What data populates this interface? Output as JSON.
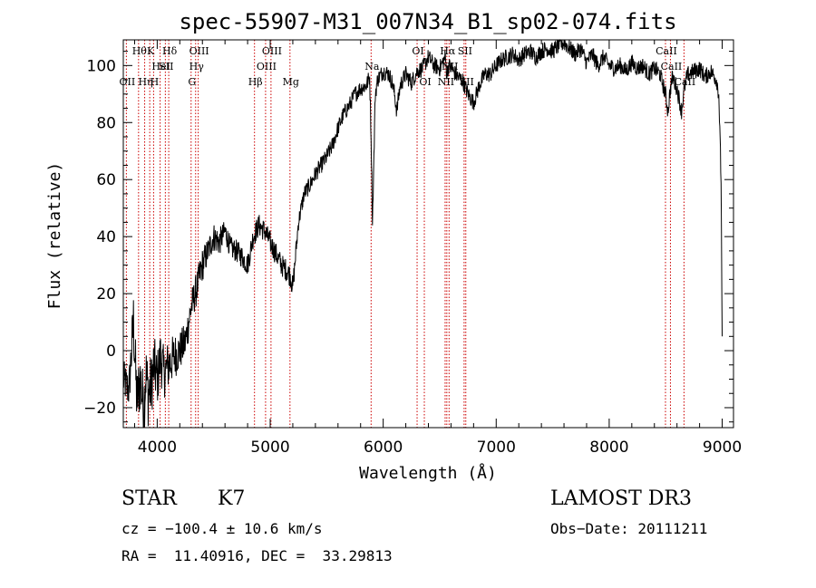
{
  "chart_data": {
    "type": "line",
    "title": "spec-55907-M31_007N34_B1_sp02-074.fits",
    "xlabel": "Wavelength (Å)",
    "ylabel": "Flux (relative)",
    "xlim": [
      3700,
      9100
    ],
    "ylim": [
      -27,
      109
    ],
    "x_ticks": [
      4000,
      5000,
      6000,
      7000,
      8000,
      9000
    ],
    "y_ticks": [
      -20,
      0,
      20,
      40,
      60,
      80,
      100
    ],
    "grid": false,
    "series": [
      {
        "x": [
          3700,
          3750,
          3790,
          3820,
          3850,
          3880,
          3900,
          3920,
          3950,
          3970,
          4000,
          4030,
          4060,
          4100,
          4150,
          4200,
          4250,
          4300,
          4350,
          4400,
          4450,
          4500,
          4550,
          4600,
          4650,
          4700,
          4750,
          4800,
          4850,
          4900,
          4950,
          5000,
          5050,
          5100,
          5150,
          5180,
          5200,
          5250,
          5300,
          5350,
          5400,
          5450,
          5500,
          5550,
          5600,
          5650,
          5700,
          5750,
          5800,
          5850,
          5880,
          5893,
          5905,
          5930,
          5950,
          6000,
          6050,
          6080,
          6100,
          6120,
          6150,
          6200,
          6250,
          6300,
          6350,
          6400,
          6450,
          6500,
          6550,
          6563,
          6580,
          6620,
          6660,
          6700,
          6750,
          6800,
          6850,
          6900,
          6950,
          7000,
          7050,
          7100,
          7150,
          7200,
          7250,
          7300,
          7350,
          7400,
          7450,
          7500,
          7550,
          7600,
          7650,
          7700,
          7750,
          7800,
          7850,
          7900,
          7950,
          8000,
          8050,
          8100,
          8150,
          8200,
          8250,
          8300,
          8350,
          8400,
          8450,
          8498,
          8520,
          8542,
          8560,
          8600,
          8640,
          8662,
          8680,
          8700,
          8750,
          8800,
          8850,
          8900,
          8950,
          8970,
          8990,
          9000
        ],
        "y": [
          -10,
          -14,
          10,
          -18,
          -10,
          -20,
          -8,
          -15,
          -12,
          -5,
          -10,
          -2,
          -8,
          -5,
          -2,
          0,
          3,
          15,
          22,
          30,
          35,
          40,
          38,
          42,
          36,
          35,
          33,
          30,
          40,
          44,
          42,
          38,
          34,
          30,
          28,
          26,
          22,
          45,
          55,
          58,
          62,
          65,
          68,
          72,
          78,
          83,
          86,
          90,
          92,
          93,
          96,
          75,
          45,
          90,
          95,
          98,
          97,
          94,
          90,
          84,
          93,
          97,
          94,
          98,
          99,
          103,
          100,
          99,
          103,
          97,
          100,
          98,
          96,
          95,
          90,
          87,
          93,
          97,
          97,
          100,
          102,
          103,
          104,
          102,
          104,
          105,
          103,
          105,
          106,
          105,
          107,
          108,
          106,
          104,
          106,
          101,
          104,
          100,
          103,
          100,
          99,
          100,
          98,
          101,
          99,
          100,
          97,
          99,
          97,
          90,
          84,
          92,
          96,
          92,
          84,
          91,
          95,
          97,
          98,
          99,
          96,
          98,
          95,
          90,
          60,
          5
        ],
        "noise": [
          7,
          7,
          12,
          11,
          12,
          12,
          12,
          12,
          11,
          11,
          10,
          10,
          9,
          9,
          8,
          7,
          7,
          6,
          6,
          6,
          5,
          5,
          5,
          4,
          4,
          4,
          4,
          4,
          4,
          4,
          4,
          4,
          4,
          4,
          4,
          4,
          4,
          3,
          3,
          3,
          3,
          3,
          3,
          3,
          3,
          3,
          3,
          3,
          3,
          3,
          3,
          3,
          3,
          3,
          3,
          3,
          3,
          3,
          3,
          3,
          3,
          3,
          3,
          3,
          3,
          3,
          3,
          3,
          3,
          3,
          3,
          3,
          3,
          3,
          3,
          3,
          3,
          3,
          3,
          3,
          3,
          3,
          3,
          3,
          3,
          3,
          3,
          3,
          3,
          3,
          3,
          3,
          3,
          3,
          3,
          3,
          3,
          3,
          3,
          3,
          3,
          3,
          3,
          3,
          3,
          3,
          3,
          3,
          3,
          3,
          3,
          3,
          3,
          3,
          3,
          3,
          3,
          3,
          3,
          3,
          3,
          3,
          3,
          3,
          3,
          3
        ]
      }
    ],
    "line_color": "#000000",
    "line_marker_color": "#cc0000",
    "lines": [
      {
        "wl": 3727,
        "label": "OII",
        "row": 2
      },
      {
        "wl": 3835,
        "label": "Hθ",
        "row": 0
      },
      {
        "wl": 3889,
        "label": "Hη",
        "row": 2
      },
      {
        "wl": 3934,
        "label": "K",
        "row": 0
      },
      {
        "wl": 3968,
        "label": "H",
        "row": 2
      },
      {
        "wl": 4026,
        "label": "HeI",
        "row": 1
      },
      {
        "wl": 4072,
        "label": "SII",
        "row": 1
      },
      {
        "wl": 4102,
        "label": "Hδ",
        "row": 0
      },
      {
        "wl": 4300,
        "label": "G",
        "row": 2
      },
      {
        "wl": 4340,
        "label": "Hγ",
        "row": 1
      },
      {
        "wl": 4363,
        "label": "OIII",
        "row": 0
      },
      {
        "wl": 4861,
        "label": "Hβ",
        "row": 2
      },
      {
        "wl": 4959,
        "label": "OIII",
        "row": 1
      },
      {
        "wl": 5007,
        "label": "OIII",
        "row": 0
      },
      {
        "wl": 5175,
        "label": "Mg",
        "row": 2
      },
      {
        "wl": 5893,
        "label": "Na",
        "row": 1
      },
      {
        "wl": 6300,
        "label": "OI",
        "row": 0
      },
      {
        "wl": 6364,
        "label": "OI",
        "row": 2
      },
      {
        "wl": 6548,
        "label": "NII",
        "row": 2
      },
      {
        "wl": 6563,
        "label": "Hα",
        "row": 0
      },
      {
        "wl": 6583,
        "label": "NII",
        "row": 1
      },
      {
        "wl": 6716,
        "label": "SII",
        "row": 0
      },
      {
        "wl": 6731,
        "label": "SII",
        "row": 2
      },
      {
        "wl": 8498,
        "label": "CaII",
        "row": 0
      },
      {
        "wl": 8542,
        "label": "CaII",
        "row": 1
      },
      {
        "wl": 8662,
        "label": "CaII",
        "row": 2
      }
    ]
  },
  "info": {
    "class": "STAR",
    "subclass": "K7",
    "survey": "LAMOST DR3",
    "cz": "cz = −100.4 ± 10.6 km/s",
    "obs_date": "Obs−Date: 20111211",
    "radec": "RA =  11.40916, DEC =  33.29813"
  }
}
